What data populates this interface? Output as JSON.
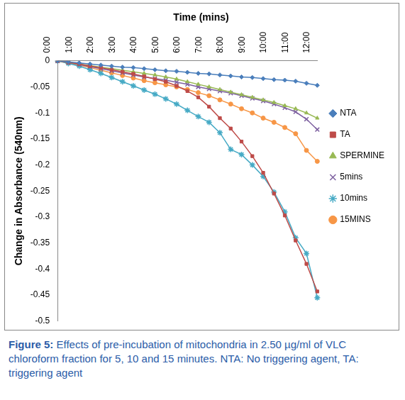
{
  "chart_data": {
    "type": "line",
    "x_label": "Time (mins)",
    "y_label": "Change in Absorbance (540nm)",
    "caption": {
      "label": "Figure 5:",
      "text": "Effects of pre-incubation of mitochondria in 2.50 µg/ml of VLC chloroform fraction for 5, 10 and 15 minutes. NTA: No triggering agent, TA: triggering agent"
    },
    "categories": [
      "0:00",
      null,
      "1:00",
      null,
      "2:00",
      null,
      "3:00",
      null,
      "4:00",
      null,
      "5:00",
      null,
      "6:00",
      null,
      "7:00",
      null,
      "8:00",
      null,
      "9:00",
      null,
      "10:00",
      null,
      "11:00",
      null,
      "12:00"
    ],
    "series": [
      {
        "name": "NTA",
        "color": "#4a7ebb",
        "marker": "diamond",
        "values": [
          0,
          -0.002,
          -0.004,
          -0.006,
          -0.008,
          -0.01,
          -0.012,
          -0.013,
          -0.015,
          -0.017,
          -0.019,
          -0.02,
          -0.022,
          -0.024,
          -0.025,
          -0.027,
          -0.029,
          -0.031,
          -0.032,
          -0.034,
          -0.036,
          -0.037,
          -0.039,
          -0.043,
          -0.047
        ]
      },
      {
        "name": "TA",
        "color": "#be4b48",
        "marker": "square",
        "values": [
          0,
          -0.003,
          -0.006,
          -0.01,
          -0.013,
          -0.017,
          -0.021,
          -0.025,
          -0.03,
          -0.035,
          -0.04,
          -0.048,
          -0.058,
          -0.07,
          -0.088,
          -0.11,
          -0.13,
          -0.155,
          -0.183,
          -0.215,
          -0.255,
          -0.297,
          -0.345,
          -0.39,
          -0.443
        ]
      },
      {
        "name": "SPERMINE",
        "color": "#98b954",
        "marker": "triangle",
        "values": [
          0,
          -0.003,
          -0.006,
          -0.009,
          -0.012,
          -0.015,
          -0.018,
          -0.021,
          -0.024,
          -0.027,
          -0.031,
          -0.035,
          -0.04,
          -0.045,
          -0.05,
          -0.055,
          -0.06,
          -0.065,
          -0.07,
          -0.075,
          -0.08,
          -0.086,
          -0.092,
          -0.1,
          -0.11
        ]
      },
      {
        "name": "5mins",
        "color": "#7d60a0",
        "marker": "x",
        "values": [
          0,
          -0.003,
          -0.007,
          -0.011,
          -0.015,
          -0.019,
          -0.023,
          -0.027,
          -0.031,
          -0.034,
          -0.037,
          -0.041,
          -0.045,
          -0.05,
          -0.054,
          -0.058,
          -0.062,
          -0.067,
          -0.072,
          -0.077,
          -0.083,
          -0.09,
          -0.098,
          -0.112,
          -0.132
        ]
      },
      {
        "name": "10mins",
        "color": "#46aac5",
        "marker": "asterisk",
        "values": [
          0,
          -0.005,
          -0.01,
          -0.017,
          -0.024,
          -0.032,
          -0.04,
          -0.048,
          -0.056,
          -0.064,
          -0.073,
          -0.083,
          -0.095,
          -0.107,
          -0.118,
          -0.138,
          -0.17,
          -0.18,
          -0.2,
          -0.222,
          -0.252,
          -0.29,
          -0.34,
          -0.37,
          -0.455
        ]
      },
      {
        "name": "15MINS",
        "color": "#f79646",
        "marker": "circle",
        "values": [
          0,
          -0.004,
          -0.008,
          -0.013,
          -0.018,
          -0.023,
          -0.028,
          -0.033,
          -0.038,
          -0.042,
          -0.046,
          -0.05,
          -0.055,
          -0.061,
          -0.067,
          -0.075,
          -0.083,
          -0.092,
          -0.1,
          -0.11,
          -0.118,
          -0.128,
          -0.14,
          -0.172,
          -0.193
        ]
      }
    ],
    "ylim": [
      -0.5,
      0
    ],
    "yticks": [
      0,
      -0.05,
      -0.1,
      -0.15,
      -0.2,
      -0.25,
      -0.3,
      -0.35,
      -0.4,
      -0.45,
      -0.5
    ],
    "grid": false,
    "legend": "right"
  }
}
